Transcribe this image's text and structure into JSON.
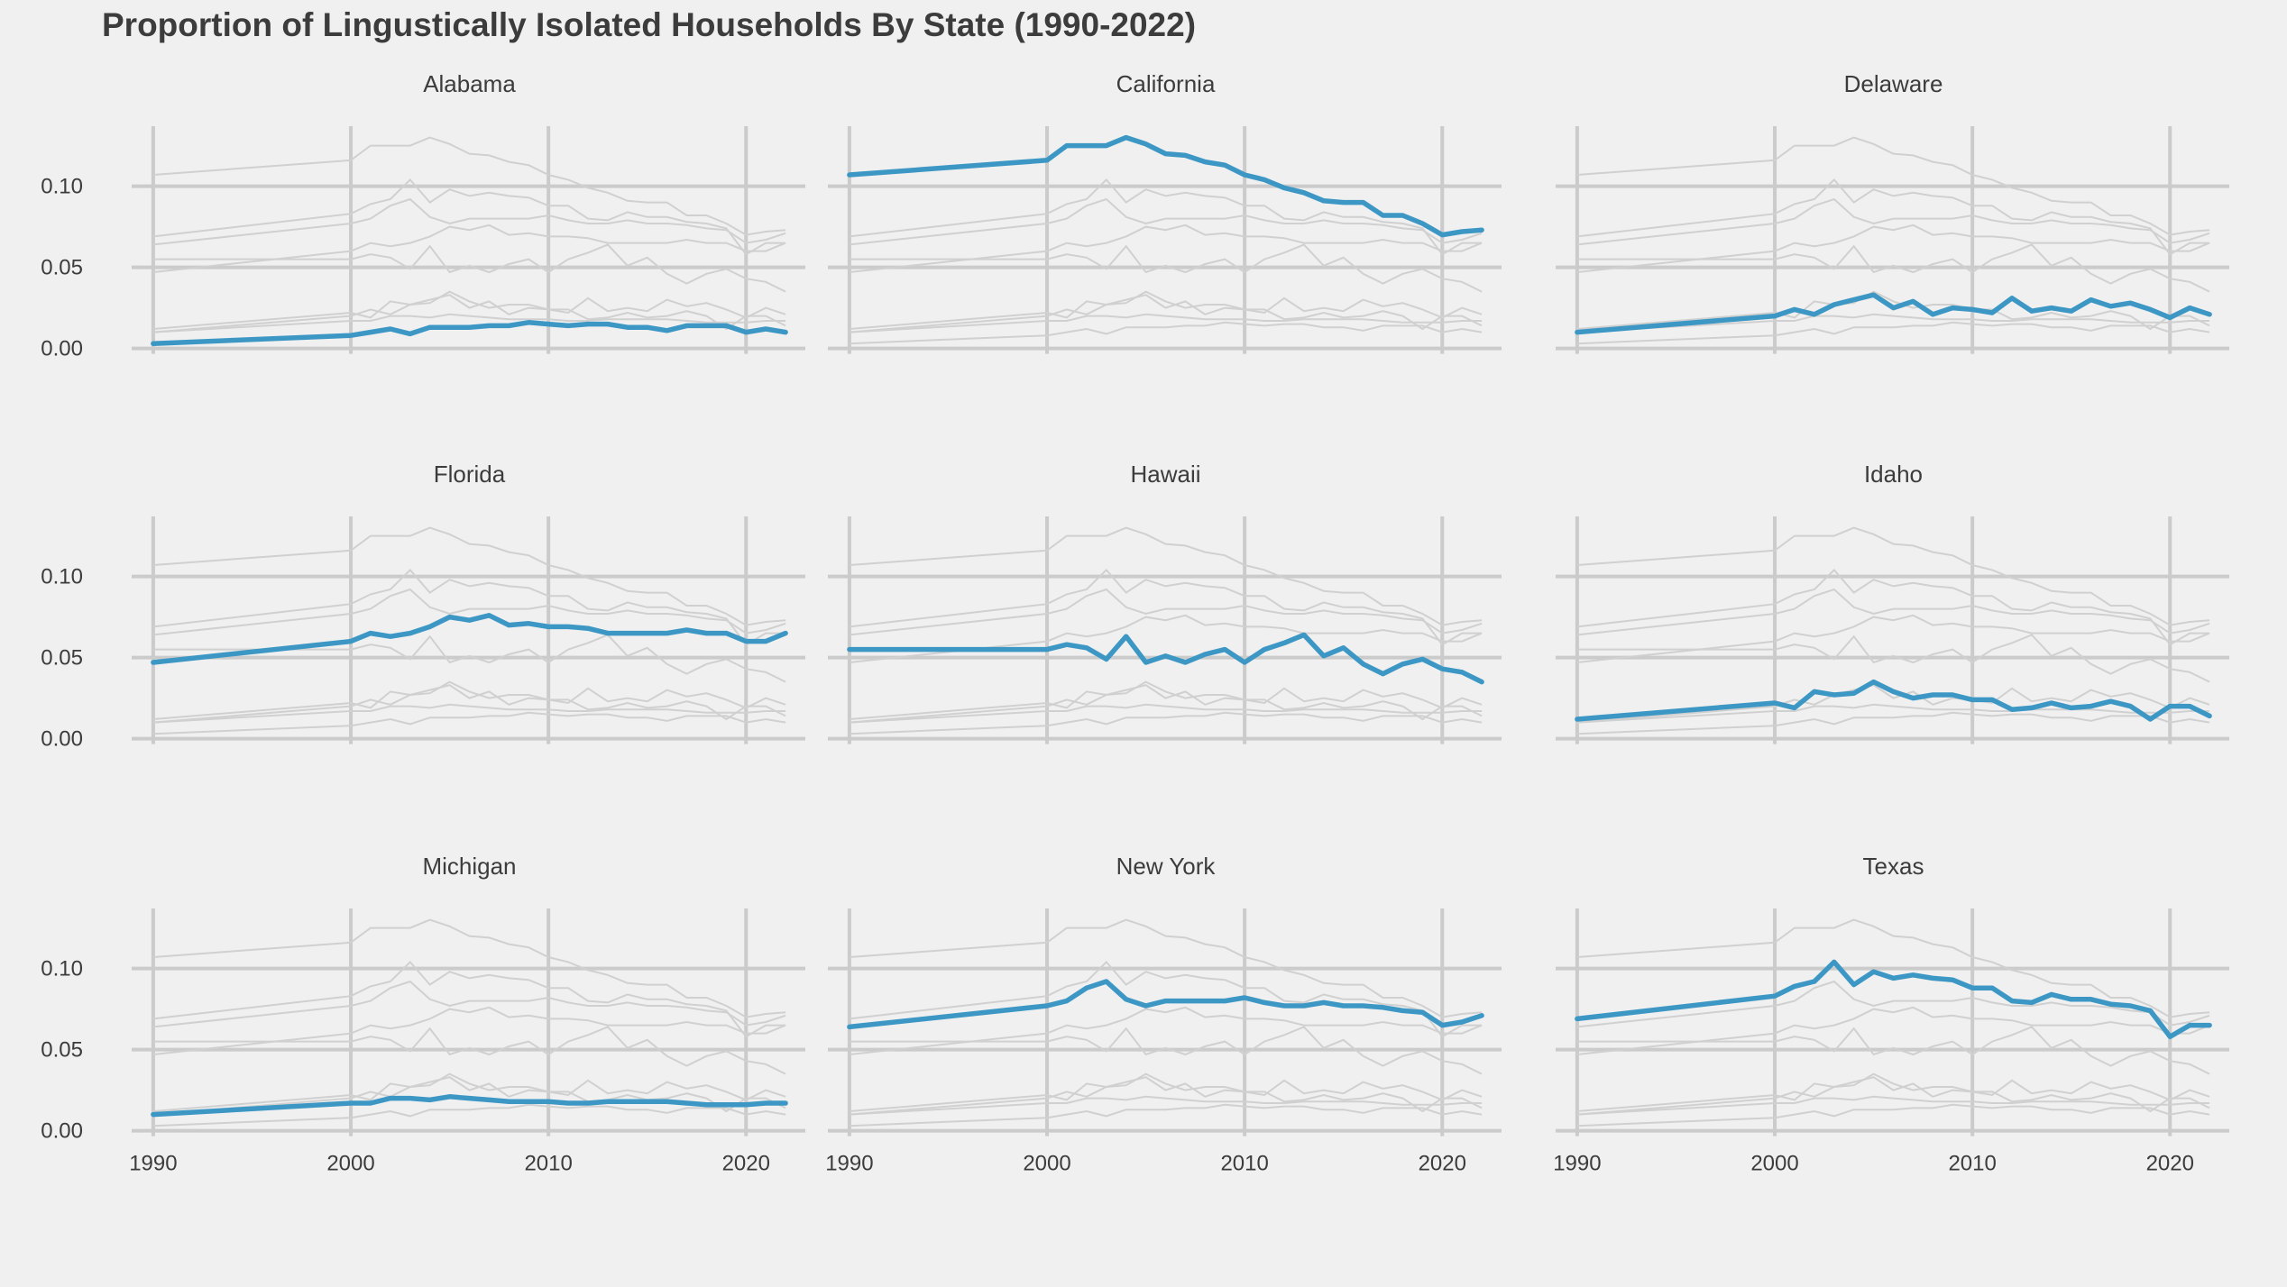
{
  "chart_data": {
    "type": "line",
    "title": "Proportion of Lingustically Isolated Households By State (1990-2022)",
    "layout": "facet-grid-3x3",
    "x": [
      1990,
      2000,
      2001,
      2002,
      2003,
      2004,
      2005,
      2006,
      2007,
      2008,
      2009,
      2010,
      2011,
      2012,
      2013,
      2014,
      2015,
      2016,
      2017,
      2018,
      2019,
      2020,
      2021,
      2022
    ],
    "xlim": [
      1989,
      2023
    ],
    "ylim": [
      0,
      0.137
    ],
    "x_ticks": [
      1990,
      2000,
      2010,
      2020
    ],
    "x_tick_labels": [
      "1990",
      "2000",
      "2010",
      "2020"
    ],
    "y_ticks": [
      0,
      0.05,
      0.1
    ],
    "y_tick_labels": [
      "0.00",
      "0.05",
      "0.10"
    ],
    "grid": true,
    "colors": {
      "highlight": "#3d97c4",
      "background_series": "#d0d0d0",
      "grid": "#cbcbcb",
      "panel_bg": "#f0f0f0"
    },
    "series": [
      {
        "name": "Alabama",
        "values": [
          0.003,
          0.008,
          0.01,
          0.012,
          0.009,
          0.013,
          0.013,
          0.013,
          0.014,
          0.014,
          0.016,
          0.015,
          0.014,
          0.015,
          0.015,
          0.013,
          0.013,
          0.011,
          0.014,
          0.014,
          0.014,
          0.01,
          0.012,
          0.01
        ]
      },
      {
        "name": "California",
        "values": [
          0.107,
          0.116,
          0.125,
          0.125,
          0.125,
          0.13,
          0.126,
          0.12,
          0.119,
          0.115,
          0.113,
          0.107,
          0.104,
          0.099,
          0.096,
          0.091,
          0.09,
          0.09,
          0.082,
          0.082,
          0.077,
          0.07,
          0.072,
          0.073
        ]
      },
      {
        "name": "Delaware",
        "values": [
          0.01,
          0.02,
          0.024,
          0.021,
          0.027,
          0.03,
          0.033,
          0.025,
          0.029,
          0.021,
          0.025,
          0.024,
          0.022,
          0.031,
          0.023,
          0.025,
          0.023,
          0.03,
          0.026,
          0.028,
          0.024,
          0.019,
          0.025,
          0.021
        ]
      },
      {
        "name": "Florida",
        "values": [
          0.047,
          0.06,
          0.065,
          0.063,
          0.065,
          0.069,
          0.075,
          0.073,
          0.076,
          0.07,
          0.071,
          0.069,
          0.069,
          0.068,
          0.065,
          0.065,
          0.065,
          0.065,
          0.067,
          0.065,
          0.065,
          0.06,
          0.06,
          0.065
        ]
      },
      {
        "name": "Hawaii",
        "values": [
          0.055,
          0.055,
          0.058,
          0.056,
          0.049,
          0.063,
          0.047,
          0.051,
          0.047,
          0.052,
          0.055,
          0.047,
          0.055,
          0.059,
          0.064,
          0.051,
          0.056,
          0.046,
          0.04,
          0.046,
          0.049,
          0.043,
          0.041,
          0.035
        ]
      },
      {
        "name": "Idaho",
        "values": [
          0.012,
          0.022,
          0.019,
          0.029,
          0.027,
          0.028,
          0.035,
          0.029,
          0.025,
          0.027,
          0.027,
          0.024,
          0.024,
          0.018,
          0.019,
          0.022,
          0.019,
          0.02,
          0.023,
          0.02,
          0.012,
          0.02,
          0.02,
          0.014
        ]
      },
      {
        "name": "Michigan",
        "values": [
          0.01,
          0.017,
          0.017,
          0.02,
          0.02,
          0.019,
          0.021,
          0.02,
          0.019,
          0.018,
          0.018,
          0.018,
          0.017,
          0.017,
          0.018,
          0.018,
          0.018,
          0.018,
          0.017,
          0.016,
          0.016,
          0.016,
          0.017,
          0.017
        ]
      },
      {
        "name": "New York",
        "values": [
          0.064,
          0.077,
          0.08,
          0.088,
          0.092,
          0.081,
          0.077,
          0.08,
          0.08,
          0.08,
          0.08,
          0.082,
          0.079,
          0.077,
          0.077,
          0.079,
          0.077,
          0.077,
          0.076,
          0.074,
          0.073,
          0.065,
          0.067,
          0.071
        ]
      },
      {
        "name": "Texas",
        "values": [
          0.069,
          0.083,
          0.089,
          0.092,
          0.104,
          0.09,
          0.098,
          0.094,
          0.096,
          0.094,
          0.093,
          0.088,
          0.088,
          0.08,
          0.079,
          0.084,
          0.081,
          0.081,
          0.078,
          0.077,
          0.074,
          0.058,
          0.065,
          0.065
        ]
      }
    ]
  }
}
